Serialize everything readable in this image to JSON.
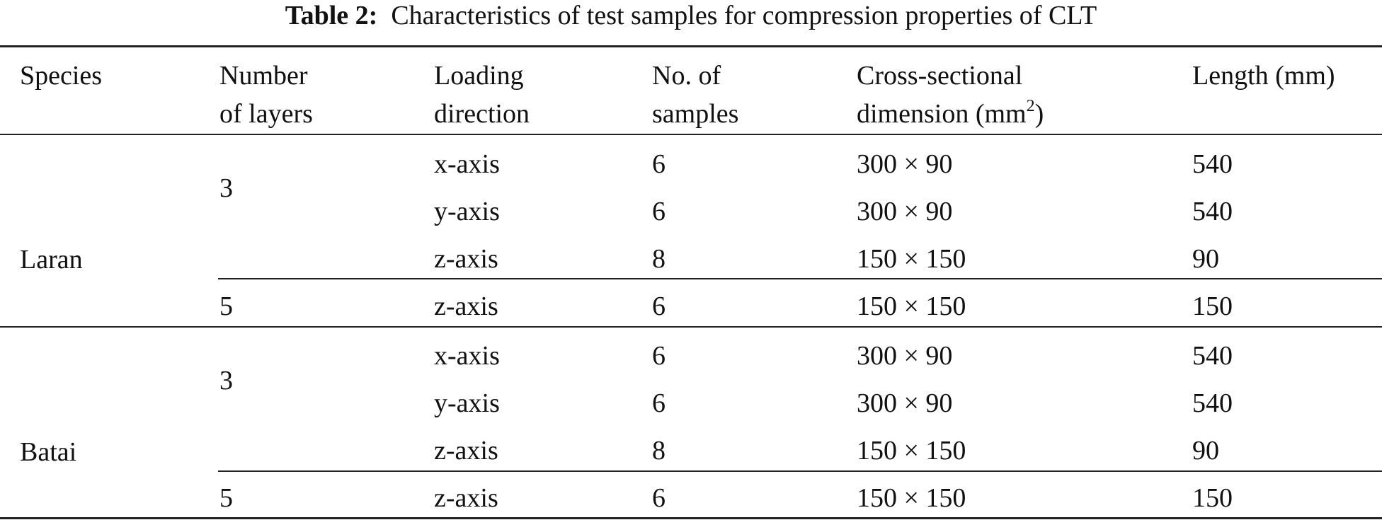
{
  "caption": {
    "label": "Table 2:",
    "text": "Characteristics of test samples for compression properties of CLT"
  },
  "header": {
    "species": "Species",
    "layers_1": "Number",
    "layers_2": "of layers",
    "direction_1": "Loading",
    "direction_2": "direction",
    "samples_1": "No. of",
    "samples_2": "samples",
    "cross_1": "Cross-sectional",
    "cross_2": "dimension (mm",
    "cross_sup": "2",
    "cross_close": ")",
    "length": "Length (mm)"
  },
  "groups": [
    {
      "species": "Laran",
      "blocks": [
        {
          "layers": "3",
          "rows": [
            {
              "direction": "x-axis",
              "samples": "6",
              "cross": "300 × 90",
              "length": "540"
            },
            {
              "direction": "y-axis",
              "samples": "6",
              "cross": "300 × 90",
              "length": "540"
            },
            {
              "direction": "z-axis",
              "samples": "8",
              "cross": "150 × 150",
              "length": "90"
            }
          ]
        },
        {
          "layers": "5",
          "rows": [
            {
              "direction": "z-axis",
              "samples": "6",
              "cross": "150 × 150",
              "length": "150"
            }
          ]
        }
      ]
    },
    {
      "species": "Batai",
      "blocks": [
        {
          "layers": "3",
          "rows": [
            {
              "direction": "x-axis",
              "samples": "6",
              "cross": "300 × 90",
              "length": "540"
            },
            {
              "direction": "y-axis",
              "samples": "6",
              "cross": "300 × 90",
              "length": "540"
            },
            {
              "direction": "z-axis",
              "samples": "8",
              "cross": "150 × 150",
              "length": "90"
            }
          ]
        },
        {
          "layers": "5",
          "rows": [
            {
              "direction": "z-axis",
              "samples": "6",
              "cross": "150 × 150",
              "length": "150"
            }
          ]
        }
      ]
    }
  ]
}
